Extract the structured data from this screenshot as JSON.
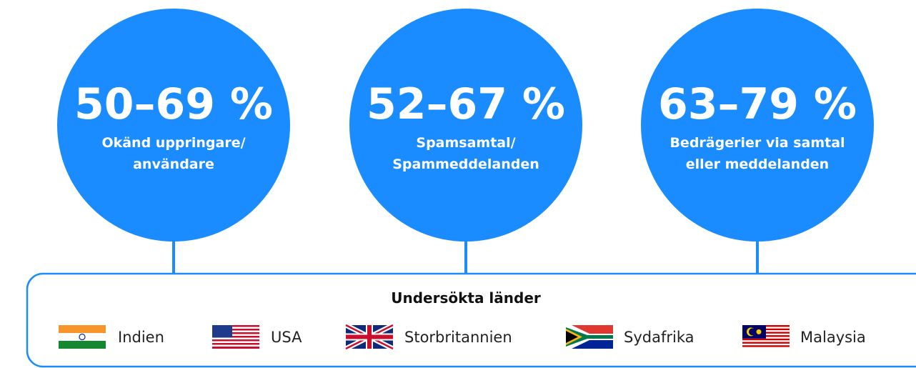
{
  "stats": [
    {
      "value": "50–69 %",
      "label": [
        "Okänd uppringare/",
        "användare"
      ]
    },
    {
      "value": "52–67 %",
      "label": [
        "Spamsamtal/",
        "Spammeddelanden"
      ]
    },
    {
      "value": "63–79 %",
      "label": [
        "Bedrägerier via samtal",
        "eller meddelanden"
      ]
    }
  ],
  "countries": {
    "title": "Undersökta länder",
    "items": [
      "Indien",
      "USA",
      "Storbritannien",
      "Sydafrika",
      "Malaysia"
    ]
  }
}
